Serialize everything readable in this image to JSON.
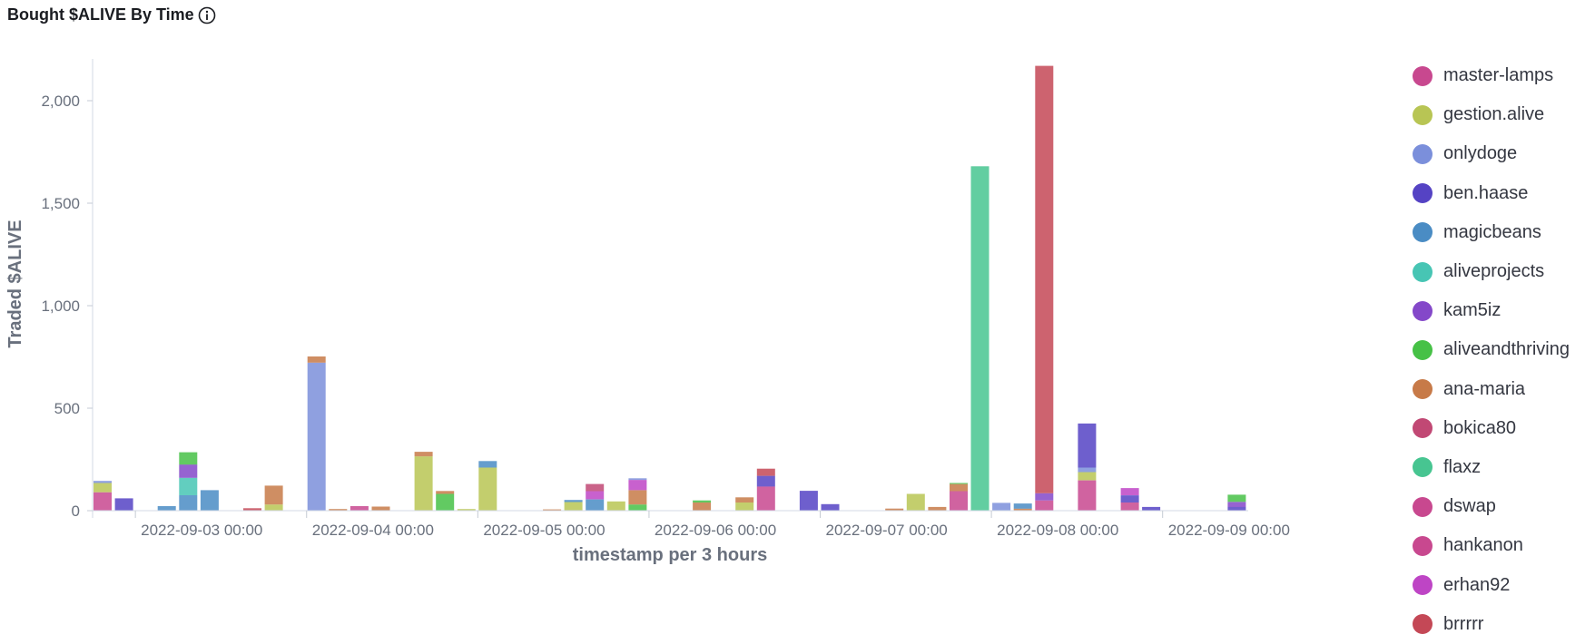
{
  "panel": {
    "title": "Bought $ALIVE By Time",
    "info_icon": "info-icon"
  },
  "chart_data": {
    "type": "bar",
    "stacked": true,
    "title": "Bought $ALIVE By Time",
    "xlabel": "timestamp per 3 hours",
    "ylabel": "Traded $ALIVE",
    "ylim": [
      0,
      2200
    ],
    "xlim": [
      "2022-09-02 18:00",
      "2022-09-09 12:00"
    ],
    "y_ticks": [
      0,
      500,
      1000,
      1500,
      2000
    ],
    "y_tick_labels": [
      "0",
      "500",
      "1,000",
      "1,500",
      "2,000"
    ],
    "x_tick_labels": [
      "2022-09-03 00:00",
      "2022-09-04 00:00",
      "2022-09-05 00:00",
      "2022-09-06 00:00",
      "2022-09-07 00:00",
      "2022-09-08 00:00",
      "2022-09-09 00:00"
    ],
    "grid": false,
    "legend_position": "right",
    "series": [
      {
        "name": "master-lamps",
        "color": "#c8488f"
      },
      {
        "name": "gestion.alive",
        "color": "#b8c554"
      },
      {
        "name": "onlydoge",
        "color": "#7b8fdb"
      },
      {
        "name": "ben.haase",
        "color": "#5543c4"
      },
      {
        "name": "magicbeans",
        "color": "#4a8cc4"
      },
      {
        "name": "aliveprojects",
        "color": "#47c5b4"
      },
      {
        "name": "kam5iz",
        "color": "#8448c9"
      },
      {
        "name": "aliveandthriving",
        "color": "#46c146"
      },
      {
        "name": "ana-maria",
        "color": "#c77a48"
      },
      {
        "name": "bokica80",
        "color": "#c14874"
      },
      {
        "name": "flaxz",
        "color": "#47c591"
      },
      {
        "name": "dswap",
        "color": "#c8488f"
      },
      {
        "name": "hankanon",
        "color": "#c8488f"
      },
      {
        "name": "erhan92",
        "color": "#be45c5"
      },
      {
        "name": "brrrrr",
        "color": "#c44856"
      }
    ],
    "bars": [
      {
        "x": "2022-09-02 18:00",
        "stack": [
          {
            "series": "master-lamps",
            "value": 90
          },
          {
            "series": "gestion.alive",
            "value": 45
          },
          {
            "series": "onlydoge",
            "value": 10
          }
        ]
      },
      {
        "x": "2022-09-02 21:00",
        "stack": [
          {
            "series": "ben.haase",
            "value": 60
          }
        ]
      },
      {
        "x": "2022-09-03 00:00",
        "stack": []
      },
      {
        "x": "2022-09-03 03:00",
        "stack": [
          {
            "series": "magicbeans",
            "value": 22
          }
        ]
      },
      {
        "x": "2022-09-03 06:00",
        "stack": [
          {
            "series": "magicbeans",
            "value": 75
          },
          {
            "series": "aliveprojects",
            "value": 85
          },
          {
            "series": "kam5iz",
            "value": 65
          },
          {
            "series": "aliveandthriving",
            "value": 60
          }
        ]
      },
      {
        "x": "2022-09-03 09:00",
        "stack": [
          {
            "series": "magicbeans",
            "value": 100
          }
        ]
      },
      {
        "x": "2022-09-03 12:00",
        "stack": []
      },
      {
        "x": "2022-09-03 15:00",
        "stack": [
          {
            "series": "brrrrr",
            "value": 12
          }
        ]
      },
      {
        "x": "2022-09-03 18:00",
        "stack": [
          {
            "series": "gestion.alive",
            "value": 30
          },
          {
            "series": "ana-maria",
            "value": 92
          }
        ]
      },
      {
        "x": "2022-09-03 21:00",
        "stack": []
      },
      {
        "x": "2022-09-04 00:00",
        "stack": [
          {
            "series": "onlydoge",
            "value": 722
          },
          {
            "series": "ana-maria",
            "value": 30
          }
        ]
      },
      {
        "x": "2022-09-04 03:00",
        "stack": [
          {
            "series": "ana-maria",
            "value": 8
          }
        ]
      },
      {
        "x": "2022-09-04 06:00",
        "stack": [
          {
            "series": "master-lamps",
            "value": 22
          }
        ]
      },
      {
        "x": "2022-09-04 09:00",
        "stack": [
          {
            "series": "ana-maria",
            "value": 20
          }
        ]
      },
      {
        "x": "2022-09-04 12:00",
        "stack": []
      },
      {
        "x": "2022-09-04 15:00",
        "stack": [
          {
            "series": "gestion.alive",
            "value": 265
          },
          {
            "series": "ana-maria",
            "value": 22
          }
        ]
      },
      {
        "x": "2022-09-04 18:00",
        "stack": [
          {
            "series": "aliveandthriving",
            "value": 82
          },
          {
            "series": "ana-maria",
            "value": 14
          }
        ]
      },
      {
        "x": "2022-09-04 21:00",
        "stack": [
          {
            "series": "gestion.alive",
            "value": 8
          }
        ]
      },
      {
        "x": "2022-09-05 00:00",
        "stack": [
          {
            "series": "gestion.alive",
            "value": 210
          },
          {
            "series": "magicbeans",
            "value": 32
          }
        ]
      },
      {
        "x": "2022-09-05 03:00",
        "stack": []
      },
      {
        "x": "2022-09-05 06:00",
        "stack": []
      },
      {
        "x": "2022-09-05 09:00",
        "stack": [
          {
            "series": "ana-maria",
            "value": 6
          }
        ]
      },
      {
        "x": "2022-09-05 12:00",
        "stack": [
          {
            "series": "gestion.alive",
            "value": 42
          },
          {
            "series": "magicbeans",
            "value": 10
          }
        ]
      },
      {
        "x": "2022-09-05 15:00",
        "stack": [
          {
            "series": "magicbeans",
            "value": 55
          },
          {
            "series": "erhan92",
            "value": 40
          },
          {
            "series": "bokica80",
            "value": 35
          }
        ]
      },
      {
        "x": "2022-09-05 18:00",
        "stack": [
          {
            "series": "gestion.alive",
            "value": 45
          }
        ]
      },
      {
        "x": "2022-09-05 21:00",
        "stack": [
          {
            "series": "aliveandthriving",
            "value": 30
          },
          {
            "series": "ana-maria",
            "value": 70
          },
          {
            "series": "erhan92",
            "value": 50
          },
          {
            "series": "onlydoge",
            "value": 8
          }
        ]
      },
      {
        "x": "2022-09-06 00:00",
        "stack": []
      },
      {
        "x": "2022-09-06 03:00",
        "stack": []
      },
      {
        "x": "2022-09-06 06:00",
        "stack": [
          {
            "series": "ana-maria",
            "value": 40
          },
          {
            "series": "aliveandthriving",
            "value": 10
          }
        ]
      },
      {
        "x": "2022-09-06 09:00",
        "stack": []
      },
      {
        "x": "2022-09-06 12:00",
        "stack": [
          {
            "series": "gestion.alive",
            "value": 40
          },
          {
            "series": "ana-maria",
            "value": 25
          }
        ]
      },
      {
        "x": "2022-09-06 15:00",
        "stack": [
          {
            "series": "master-lamps",
            "value": 118
          },
          {
            "series": "ben.haase",
            "value": 52
          },
          {
            "series": "brrrrr",
            "value": 35
          }
        ]
      },
      {
        "x": "2022-09-06 18:00",
        "stack": []
      },
      {
        "x": "2022-09-06 21:00",
        "stack": [
          {
            "series": "ben.haase",
            "value": 97
          }
        ]
      },
      {
        "x": "2022-09-07 00:00",
        "stack": [
          {
            "series": "ben.haase",
            "value": 32
          }
        ]
      },
      {
        "x": "2022-09-07 03:00",
        "stack": []
      },
      {
        "x": "2022-09-07 06:00",
        "stack": []
      },
      {
        "x": "2022-09-07 09:00",
        "stack": [
          {
            "series": "ana-maria",
            "value": 10
          }
        ]
      },
      {
        "x": "2022-09-07 12:00",
        "stack": [
          {
            "series": "gestion.alive",
            "value": 82
          }
        ]
      },
      {
        "x": "2022-09-07 15:00",
        "stack": [
          {
            "series": "ana-maria",
            "value": 18
          }
        ]
      },
      {
        "x": "2022-09-07 18:00",
        "stack": [
          {
            "series": "master-lamps",
            "value": 95
          },
          {
            "series": "ana-maria",
            "value": 35
          },
          {
            "series": "aliveandthriving",
            "value": 5
          }
        ]
      },
      {
        "x": "2022-09-07 21:00",
        "stack": [
          {
            "series": "flaxz",
            "value": 1680
          }
        ]
      },
      {
        "x": "2022-09-08 00:00",
        "stack": [
          {
            "series": "onlydoge",
            "value": 38
          }
        ]
      },
      {
        "x": "2022-09-08 03:00",
        "stack": [
          {
            "series": "ana-maria",
            "value": 10
          },
          {
            "series": "magicbeans",
            "value": 25
          }
        ]
      },
      {
        "x": "2022-09-08 06:00",
        "stack": [
          {
            "series": "master-lamps",
            "value": 50
          },
          {
            "series": "kam5iz",
            "value": 35
          },
          {
            "series": "brrrrr",
            "value": 2085
          }
        ]
      },
      {
        "x": "2022-09-08 09:00",
        "stack": []
      },
      {
        "x": "2022-09-08 12:00",
        "stack": [
          {
            "series": "master-lamps",
            "value": 148
          },
          {
            "series": "gestion.alive",
            "value": 40
          },
          {
            "series": "onlydoge",
            "value": 22
          },
          {
            "series": "ben.haase",
            "value": 215
          }
        ]
      },
      {
        "x": "2022-09-08 15:00",
        "stack": []
      },
      {
        "x": "2022-09-08 18:00",
        "stack": [
          {
            "series": "master-lamps",
            "value": 40
          },
          {
            "series": "ben.haase",
            "value": 35
          },
          {
            "series": "erhan92",
            "value": 35
          }
        ]
      },
      {
        "x": "2022-09-08 21:00",
        "stack": [
          {
            "series": "ben.haase",
            "value": 18
          }
        ]
      },
      {
        "x": "2022-09-09 00:00",
        "stack": []
      },
      {
        "x": "2022-09-09 03:00",
        "stack": []
      },
      {
        "x": "2022-09-09 06:00",
        "stack": []
      },
      {
        "x": "2022-09-09 09:00",
        "stack": [
          {
            "series": "ben.haase",
            "value": 18
          },
          {
            "series": "kam5iz",
            "value": 25
          },
          {
            "series": "aliveandthriving",
            "value": 35
          }
        ]
      }
    ]
  }
}
